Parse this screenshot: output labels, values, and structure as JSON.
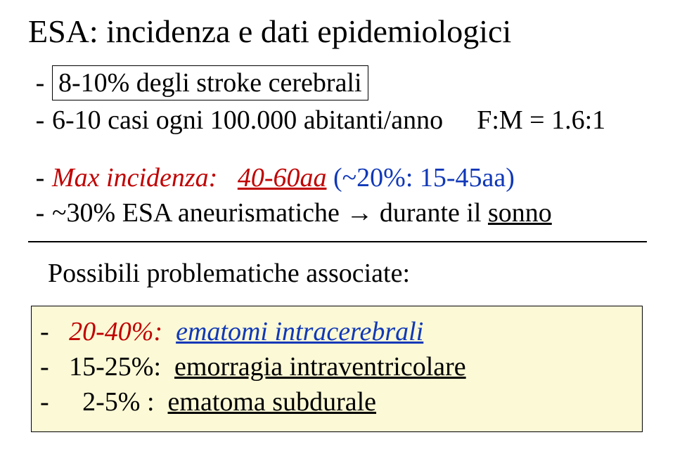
{
  "title": "ESA: incidenza e dati epidemiologici",
  "line1_boxed": "8-10% degli stroke cerebrali",
  "line2_left": "6-10 casi ogni 100.000 abitanti/anno",
  "line2_right": "F:M = 1.6:1",
  "line3_pre": "Max incidenza:",
  "line3_age_red": "40-60aa",
  "line3_tail": " (~20%: 15-45aa)",
  "line4_a": "~30% ESA aneurismatiche ",
  "line4_arrow": "→",
  "line4_b": " durante il ",
  "line4_c": "sonno",
  "assoc_title": "Possibili problematiche associate:",
  "bb1_pct": "20-40%:",
  "bb1_txt": "ematomi intracerebrali",
  "bb2_pct": "15-25%:",
  "bb2_txt": "emorragia intraventricolare",
  "bb3_pct": "2-5% :",
  "bb3_txt": "ematoma subdurale",
  "colors": {
    "red": "#c00000",
    "blue": "#1038b8",
    "box_bg": "#fbf9d6",
    "text": "#000000",
    "bg": "#ffffff"
  },
  "fontsizes": {
    "title": 46,
    "body": 38
  }
}
